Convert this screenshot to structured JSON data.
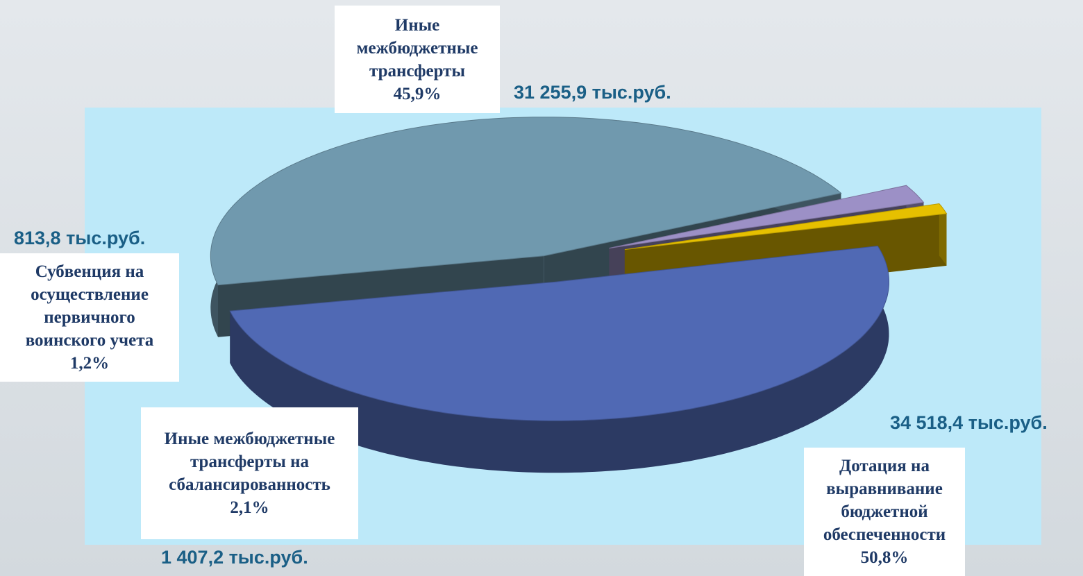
{
  "chart_data": {
    "type": "pie",
    "categories": [
      "Дотация на выравнивание бюджетной обеспеченности",
      "Иные межбюджетные трансферты",
      "Иные межбюджетные трансферты на сбалансированность",
      "Субвенция на осуществление первичного воинского учета"
    ],
    "values": [
      50.8,
      45.9,
      2.1,
      1.2
    ],
    "value_labels": [
      "50,8%",
      "45,9%",
      "2,1%",
      "1,2%"
    ],
    "amount_labels": [
      "34 518,4 тыс.руб.",
      "31 255,9 тыс.руб.",
      "1 407,2 тыс.руб.",
      "813,8 тыс.руб."
    ],
    "colors": [
      "#5069b4",
      "#7099ae",
      "#9c90c6",
      "#e6c000"
    ]
  }
}
